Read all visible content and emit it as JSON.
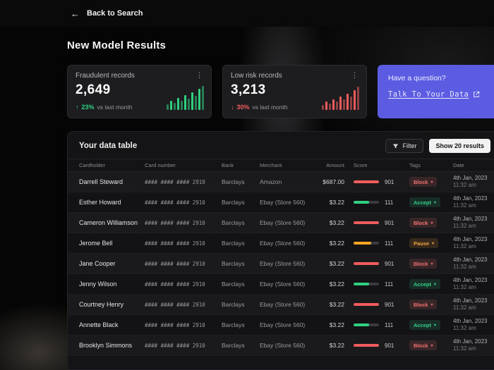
{
  "colors": {
    "green": "#2fd180",
    "red": "#f25c5c",
    "orange": "#f5a623",
    "purple": "#5b5ce2"
  },
  "top_bar": {
    "back_icon": "←",
    "back_label": "Back to Search"
  },
  "page_title": "New Model Results",
  "stat_cards": [
    {
      "title": "Fraudulent records",
      "value": "2,649",
      "arrow": "↑",
      "delta": "23%",
      "note": "vs last month",
      "color": "green",
      "bars": [
        8,
        13,
        10,
        17,
        13,
        21,
        16,
        25,
        20,
        30,
        34
      ]
    },
    {
      "title": "Low risk records",
      "value": "3,213",
      "arrow": "↓",
      "delta": "30%",
      "note": "vs last month",
      "color": "red",
      "bars": [
        7,
        12,
        9,
        15,
        12,
        19,
        15,
        23,
        19,
        28,
        33
      ]
    }
  ],
  "cta_card": {
    "question": "Have a question?",
    "link_label": "Talk To Your Data"
  },
  "table": {
    "title": "Your data table",
    "filter_label": "Filter",
    "show_label": "Show 20 results",
    "tag_caret": "▾",
    "columns": [
      "Cardholder",
      "Card number",
      "Bank",
      "Merchant",
      "Amount",
      "Score",
      "Tags",
      "Date"
    ],
    "rows": [
      {
        "cardholder": "Darrell Steward",
        "card_number": "#### #### #### 2910",
        "bank": "Barclays",
        "merchant": "Amazon",
        "amount": "$687.00",
        "score": "901",
        "score_color": "red",
        "score_fill": 100,
        "tag": "Block",
        "tag_color": "red",
        "date": "4th Jan, 2023",
        "time": "11:32 am"
      },
      {
        "cardholder": "Esther Howard",
        "card_number": "#### #### #### 2910",
        "bank": "Barclays",
        "merchant": "Ebay (Store 560)",
        "amount": "$3.22",
        "score": "111",
        "score_color": "green",
        "score_fill": 60,
        "tag": "Accept",
        "tag_color": "green",
        "date": "4th Jan, 2023",
        "time": "11:32 am"
      },
      {
        "cardholder": "Cameron Williamson",
        "card_number": "#### #### #### 2910",
        "bank": "Barclays",
        "merchant": "Ebay (Store 560)",
        "amount": "$3.22",
        "score": "901",
        "score_color": "red",
        "score_fill": 100,
        "tag": "Block",
        "tag_color": "red",
        "date": "4th Jan, 2023",
        "time": "11:32 am"
      },
      {
        "cardholder": "Jerome Bell",
        "card_number": "#### #### #### 2910",
        "bank": "Barclays",
        "merchant": "Ebay (Store 560)",
        "amount": "$3.22",
        "score": "111",
        "score_color": "orange",
        "score_fill": 70,
        "tag": "Pause",
        "tag_color": "orange",
        "date": "4th Jan, 2023",
        "time": "11:32 am"
      },
      {
        "cardholder": "Jane Cooper",
        "card_number": "#### #### #### 2910",
        "bank": "Barclays",
        "merchant": "Ebay (Store 560)",
        "amount": "$3.22",
        "score": "901",
        "score_color": "red",
        "score_fill": 100,
        "tag": "Block",
        "tag_color": "red",
        "date": "4th Jan, 2023",
        "time": "11:32 am"
      },
      {
        "cardholder": "Jenny Wilson",
        "card_number": "#### #### #### 2910",
        "bank": "Barclays",
        "merchant": "Ebay (Store 560)",
        "amount": "$3.22",
        "score": "111",
        "score_color": "green",
        "score_fill": 60,
        "tag": "Accept",
        "tag_color": "green",
        "date": "4th Jan, 2023",
        "time": "11:32 am"
      },
      {
        "cardholder": "Courtney Henry",
        "card_number": "#### #### #### 2910",
        "bank": "Barclays",
        "merchant": "Ebay (Store 560)",
        "amount": "$3.22",
        "score": "901",
        "score_color": "red",
        "score_fill": 100,
        "tag": "Block",
        "tag_color": "red",
        "date": "4th Jan, 2023",
        "time": "11:32 am"
      },
      {
        "cardholder": "Annette Black",
        "card_number": "#### #### #### 2910",
        "bank": "Barclays",
        "merchant": "Ebay (Store 560)",
        "amount": "$3.22",
        "score": "111",
        "score_color": "green",
        "score_fill": 60,
        "tag": "Accept",
        "tag_color": "green",
        "date": "4th Jan, 2023",
        "time": "11:32 am"
      },
      {
        "cardholder": "Brooklyn Simmons",
        "card_number": "#### #### #### 2910",
        "bank": "Barclays",
        "merchant": "Ebay (Store 560)",
        "amount": "$3.22",
        "score": "901",
        "score_color": "red",
        "score_fill": 100,
        "tag": "Block",
        "tag_color": "red",
        "date": "4th Jan, 2023",
        "time": "11:32 am"
      }
    ]
  }
}
